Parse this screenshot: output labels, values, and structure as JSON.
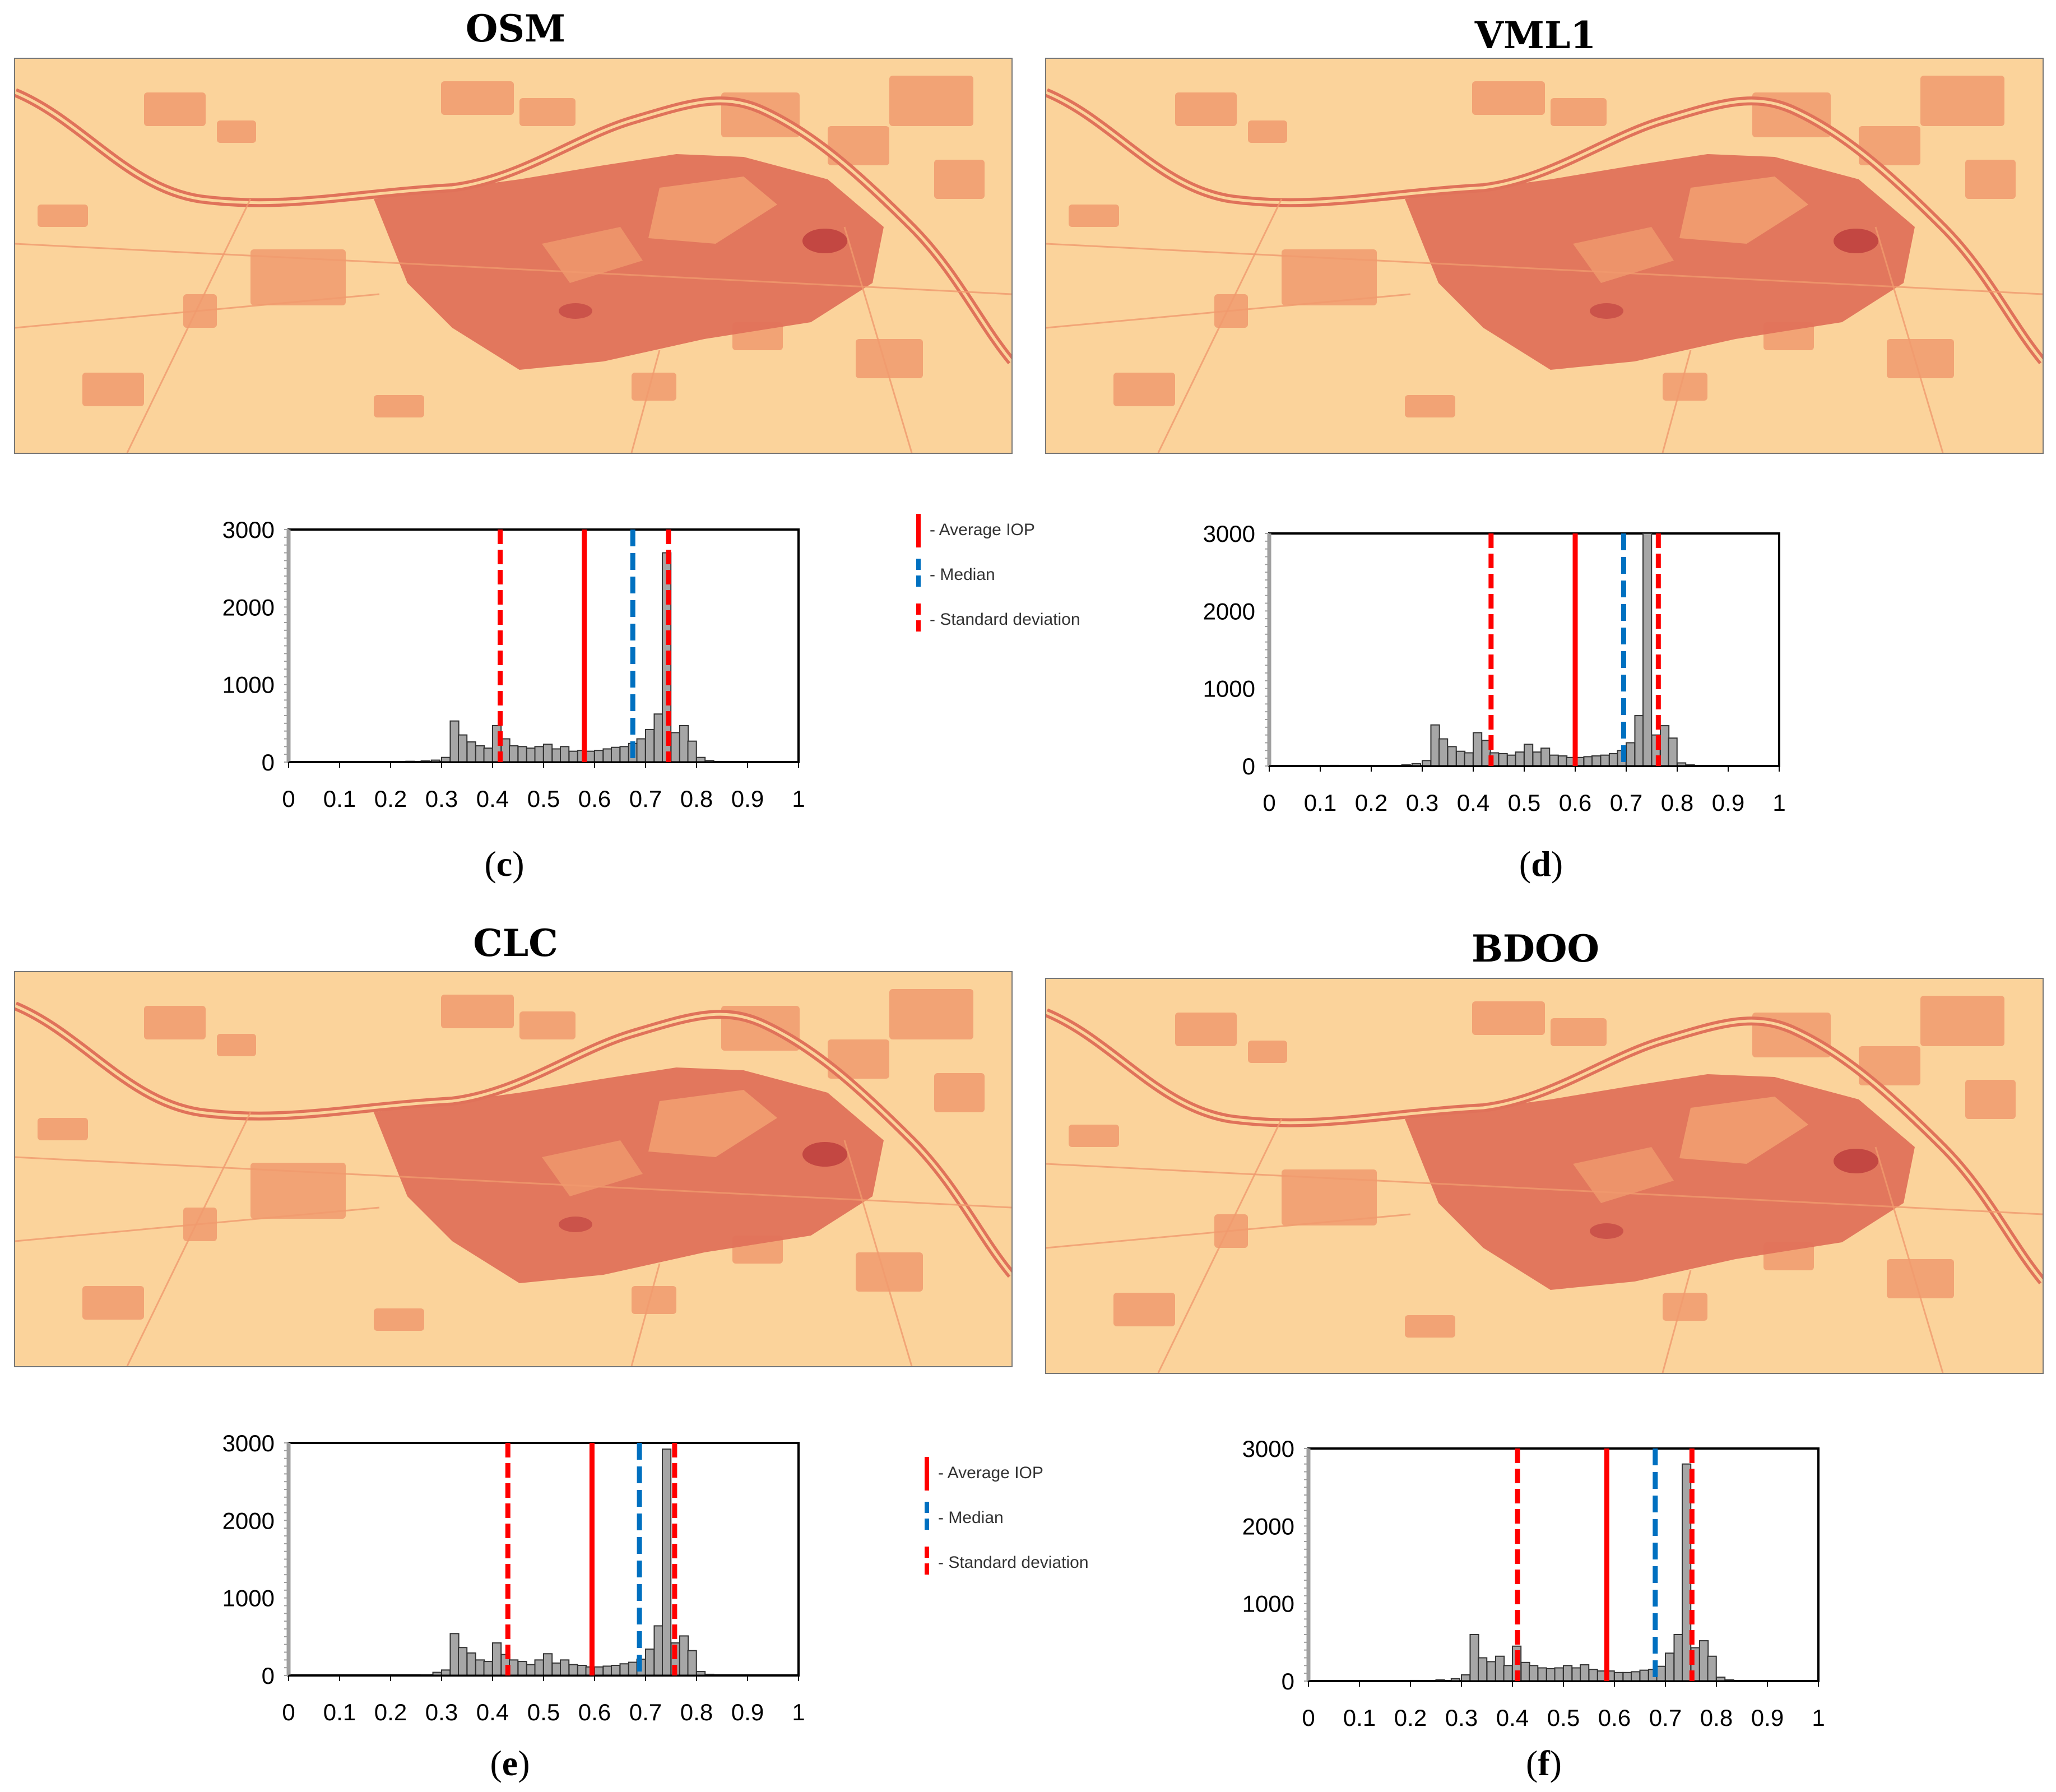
{
  "panels": [
    {
      "id": "c",
      "title": "OSM",
      "label_open": "(",
      "label_letter": "c",
      "label_close": ")"
    },
    {
      "id": "d",
      "title": "VML1",
      "label_open": "(",
      "label_letter": "d",
      "label_close": ")"
    },
    {
      "id": "e",
      "title": "CLC",
      "label_open": "(",
      "label_letter": "e",
      "label_close": ")"
    },
    {
      "id": "f",
      "title": "BDOO",
      "label_open": "(",
      "label_letter": "f",
      "label_close": ")"
    }
  ],
  "legend": {
    "average": "- Average IOP",
    "median": "- Median",
    "std": "- Standard deviation"
  },
  "colors": {
    "map_background": "#fbd39b",
    "map_medium": "#f09a6e",
    "map_dark": "#e0725a",
    "map_deepest": "#b8373a",
    "bars": "#a6a6a6",
    "average_line": "#ff0000",
    "median_line": "#0070c0",
    "std_line": "#ff0000"
  },
  "chart_data": [
    {
      "panel": "c",
      "type": "bar",
      "xlim": [
        0,
        1
      ],
      "ylim": [
        0,
        3000
      ],
      "x_ticks": [
        "0",
        "0.1",
        "0.2",
        "0.3",
        "0.4",
        "0.5",
        "0.6",
        "0.7",
        "0.8",
        "0.9",
        "1"
      ],
      "y_ticks": [
        "0",
        "1000",
        "2000",
        "3000"
      ],
      "bin_width": 0.0167,
      "bins": [
        [
          0.1,
          5
        ],
        [
          0.15,
          5
        ],
        [
          0.2,
          8
        ],
        [
          0.23,
          10
        ],
        [
          0.26,
          15
        ],
        [
          0.28,
          25
        ],
        [
          0.3,
          60
        ],
        [
          0.317,
          530
        ],
        [
          0.333,
          350
        ],
        [
          0.35,
          260
        ],
        [
          0.367,
          210
        ],
        [
          0.383,
          180
        ],
        [
          0.4,
          470
        ],
        [
          0.417,
          300
        ],
        [
          0.433,
          210
        ],
        [
          0.45,
          200
        ],
        [
          0.467,
          180
        ],
        [
          0.483,
          200
        ],
        [
          0.5,
          230
        ],
        [
          0.517,
          170
        ],
        [
          0.533,
          200
        ],
        [
          0.55,
          140
        ],
        [
          0.567,
          150
        ],
        [
          0.583,
          140
        ],
        [
          0.6,
          150
        ],
        [
          0.617,
          170
        ],
        [
          0.633,
          190
        ],
        [
          0.65,
          200
        ],
        [
          0.667,
          240
        ],
        [
          0.683,
          300
        ],
        [
          0.7,
          420
        ],
        [
          0.717,
          620
        ],
        [
          0.733,
          2700
        ],
        [
          0.75,
          380
        ],
        [
          0.767,
          470
        ],
        [
          0.783,
          270
        ],
        [
          0.8,
          60
        ],
        [
          0.817,
          20
        ],
        [
          0.833,
          8
        ]
      ],
      "average": 0.58,
      "median": 0.675,
      "std_low": 0.415,
      "std_high": 0.745
    },
    {
      "panel": "d",
      "type": "bar",
      "xlim": [
        0,
        1
      ],
      "ylim": [
        0,
        3000
      ],
      "x_ticks": [
        "0",
        "0.1",
        "0.2",
        "0.3",
        "0.4",
        "0.5",
        "0.6",
        "0.7",
        "0.8",
        "0.9",
        "1"
      ],
      "y_ticks": [
        "0",
        "1000",
        "2000",
        "3000"
      ],
      "bin_width": 0.0167,
      "bins": [
        [
          0.12,
          8
        ],
        [
          0.2,
          5
        ],
        [
          0.26,
          15
        ],
        [
          0.28,
          30
        ],
        [
          0.3,
          70
        ],
        [
          0.317,
          530
        ],
        [
          0.333,
          350
        ],
        [
          0.35,
          250
        ],
        [
          0.367,
          190
        ],
        [
          0.383,
          170
        ],
        [
          0.4,
          430
        ],
        [
          0.417,
          330
        ],
        [
          0.433,
          170
        ],
        [
          0.45,
          160
        ],
        [
          0.467,
          140
        ],
        [
          0.483,
          180
        ],
        [
          0.5,
          280
        ],
        [
          0.517,
          180
        ],
        [
          0.533,
          230
        ],
        [
          0.55,
          140
        ],
        [
          0.567,
          130
        ],
        [
          0.583,
          110
        ],
        [
          0.6,
          110
        ],
        [
          0.617,
          120
        ],
        [
          0.633,
          130
        ],
        [
          0.65,
          140
        ],
        [
          0.667,
          160
        ],
        [
          0.683,
          200
        ],
        [
          0.7,
          300
        ],
        [
          0.717,
          650
        ],
        [
          0.733,
          3000
        ],
        [
          0.75,
          400
        ],
        [
          0.767,
          520
        ],
        [
          0.783,
          360
        ],
        [
          0.8,
          40
        ],
        [
          0.817,
          15
        ]
      ],
      "average": 0.6,
      "median": 0.695,
      "std_low": 0.435,
      "std_high": 0.763
    },
    {
      "panel": "e",
      "type": "bar",
      "xlim": [
        0,
        1
      ],
      "ylim": [
        0,
        3000
      ],
      "x_ticks": [
        "0",
        "0.1",
        "0.2",
        "0.3",
        "0.4",
        "0.5",
        "0.6",
        "0.7",
        "0.8",
        "0.9",
        "1"
      ],
      "y_ticks": [
        "0",
        "1000",
        "2000",
        "3000"
      ],
      "bin_width": 0.0167,
      "bins": [
        [
          0.26,
          10
        ],
        [
          0.283,
          40
        ],
        [
          0.3,
          70
        ],
        [
          0.317,
          540
        ],
        [
          0.333,
          360
        ],
        [
          0.35,
          290
        ],
        [
          0.367,
          200
        ],
        [
          0.383,
          180
        ],
        [
          0.4,
          420
        ],
        [
          0.417,
          270
        ],
        [
          0.433,
          200
        ],
        [
          0.45,
          180
        ],
        [
          0.467,
          140
        ],
        [
          0.483,
          200
        ],
        [
          0.5,
          280
        ],
        [
          0.517,
          160
        ],
        [
          0.533,
          200
        ],
        [
          0.55,
          140
        ],
        [
          0.567,
          130
        ],
        [
          0.583,
          110
        ],
        [
          0.6,
          110
        ],
        [
          0.617,
          120
        ],
        [
          0.633,
          130
        ],
        [
          0.65,
          150
        ],
        [
          0.667,
          170
        ],
        [
          0.683,
          210
        ],
        [
          0.7,
          340
        ],
        [
          0.717,
          640
        ],
        [
          0.733,
          2920
        ],
        [
          0.75,
          420
        ],
        [
          0.767,
          510
        ],
        [
          0.783,
          320
        ],
        [
          0.8,
          50
        ],
        [
          0.817,
          15
        ]
      ],
      "average": 0.595,
      "median": 0.688,
      "std_low": 0.43,
      "std_high": 0.757
    },
    {
      "panel": "f",
      "type": "bar",
      "xlim": [
        0,
        1
      ],
      "ylim": [
        0,
        3000
      ],
      "x_ticks": [
        "0",
        "0.1",
        "0.2",
        "0.3",
        "0.4",
        "0.5",
        "0.6",
        "0.7",
        "0.8",
        "0.9",
        "1"
      ],
      "y_ticks": [
        "0",
        "1000",
        "2000",
        "3000"
      ],
      "bin_width": 0.0167,
      "bins": [
        [
          0.2,
          8
        ],
        [
          0.25,
          15
        ],
        [
          0.28,
          30
        ],
        [
          0.3,
          80
        ],
        [
          0.317,
          600
        ],
        [
          0.333,
          300
        ],
        [
          0.35,
          250
        ],
        [
          0.367,
          320
        ],
        [
          0.383,
          200
        ],
        [
          0.4,
          450
        ],
        [
          0.417,
          240
        ],
        [
          0.433,
          200
        ],
        [
          0.45,
          170
        ],
        [
          0.467,
          160
        ],
        [
          0.483,
          170
        ],
        [
          0.5,
          200
        ],
        [
          0.517,
          170
        ],
        [
          0.533,
          210
        ],
        [
          0.55,
          150
        ],
        [
          0.567,
          130
        ],
        [
          0.583,
          130
        ],
        [
          0.6,
          110
        ],
        [
          0.617,
          110
        ],
        [
          0.633,
          120
        ],
        [
          0.65,
          140
        ],
        [
          0.667,
          150
        ],
        [
          0.683,
          190
        ],
        [
          0.7,
          360
        ],
        [
          0.717,
          600
        ],
        [
          0.733,
          2800
        ],
        [
          0.75,
          430
        ],
        [
          0.767,
          520
        ],
        [
          0.783,
          320
        ],
        [
          0.8,
          50
        ],
        [
          0.817,
          15
        ]
      ],
      "average": 0.585,
      "median": 0.68,
      "std_low": 0.41,
      "std_high": 0.752
    }
  ]
}
